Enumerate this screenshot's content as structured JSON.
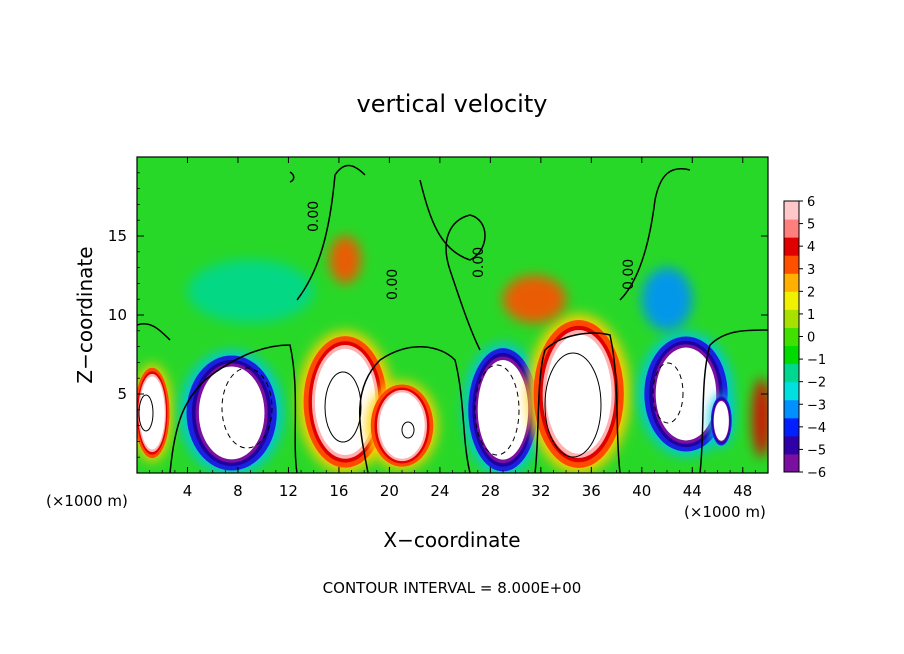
{
  "chart_data": {
    "type": "heatmap",
    "title": "vertical velocity",
    "xlabel": "X−coordinate",
    "ylabel": "Z−coordinate",
    "x_unit_left": "(×1000 m)",
    "x_unit_right": "(×1000 m)",
    "footer": "CONTOUR INTERVAL = 8.000E+00",
    "xlim": [
      0,
      50
    ],
    "ylim": [
      0,
      20
    ],
    "x_ticks": [
      4,
      8,
      12,
      16,
      20,
      24,
      28,
      32,
      36,
      40,
      44,
      48
    ],
    "y_ticks": [
      5,
      10,
      15
    ],
    "contour_labels": [
      "0.00",
      "0.00",
      "0.00",
      "0.00"
    ],
    "colorbar": {
      "min": -6,
      "max": 6,
      "ticks": [
        6,
        5,
        4,
        3,
        2,
        1,
        0,
        -1,
        -2,
        -3,
        -4,
        -5,
        -6
      ],
      "tick_labels": [
        "6",
        "5",
        "4",
        "3",
        "2",
        "1",
        "0",
        "−1",
        "−2",
        "−3",
        "−4",
        "−5",
        "−6"
      ],
      "colors": [
        "#7a0fa0",
        "#2f00a8",
        "#0020ff",
        "#0090ff",
        "#00e0e0",
        "#00d890",
        "#00dc00",
        "#40e000",
        "#a8e000",
        "#f0f000",
        "#ffb000",
        "#ff5000",
        "#e00000",
        "#ff7f7f",
        "#ffc8c8"
      ]
    },
    "cells": [
      {
        "x": 1.2,
        "z": 3.8,
        "w": 2.5,
        "h": 5.5,
        "value": 7
      },
      {
        "x": 7.5,
        "z": 3.8,
        "w": 6.5,
        "h": 7.0,
        "value": -7
      },
      {
        "x": 16.5,
        "z": 4.5,
        "w": 6.0,
        "h": 8.0,
        "value": 7
      },
      {
        "x": 21.0,
        "z": 3.0,
        "w": 4.5,
        "h": 5.0,
        "value": 6.5
      },
      {
        "x": 29.0,
        "z": 4.0,
        "w": 5.0,
        "h": 7.5,
        "value": -7
      },
      {
        "x": 35.0,
        "z": 5.0,
        "w": 6.5,
        "h": 9.0,
        "value": 7.5
      },
      {
        "x": 43.5,
        "z": 5.0,
        "w": 6.0,
        "h": 7.0,
        "value": -6.5
      },
      {
        "x": 46.3,
        "z": 3.3,
        "w": 1.5,
        "h": 3.0,
        "value": -6.5
      },
      {
        "x": 49.5,
        "z": 3.5,
        "w": 1.5,
        "h": 5.0,
        "value": 4
      },
      {
        "x": 16.5,
        "z": 13.5,
        "w": 2.5,
        "h": 3.0,
        "value": 3.5
      },
      {
        "x": 31.5,
        "z": 11.0,
        "w": 5.0,
        "h": 3.0,
        "value": 3
      },
      {
        "x": 9.0,
        "z": 11.5,
        "w": 10.0,
        "h": 4.0,
        "value": -1.5
      },
      {
        "x": 42.0,
        "z": 11.0,
        "w": 4.0,
        "h": 4.0,
        "value": -3
      }
    ]
  }
}
